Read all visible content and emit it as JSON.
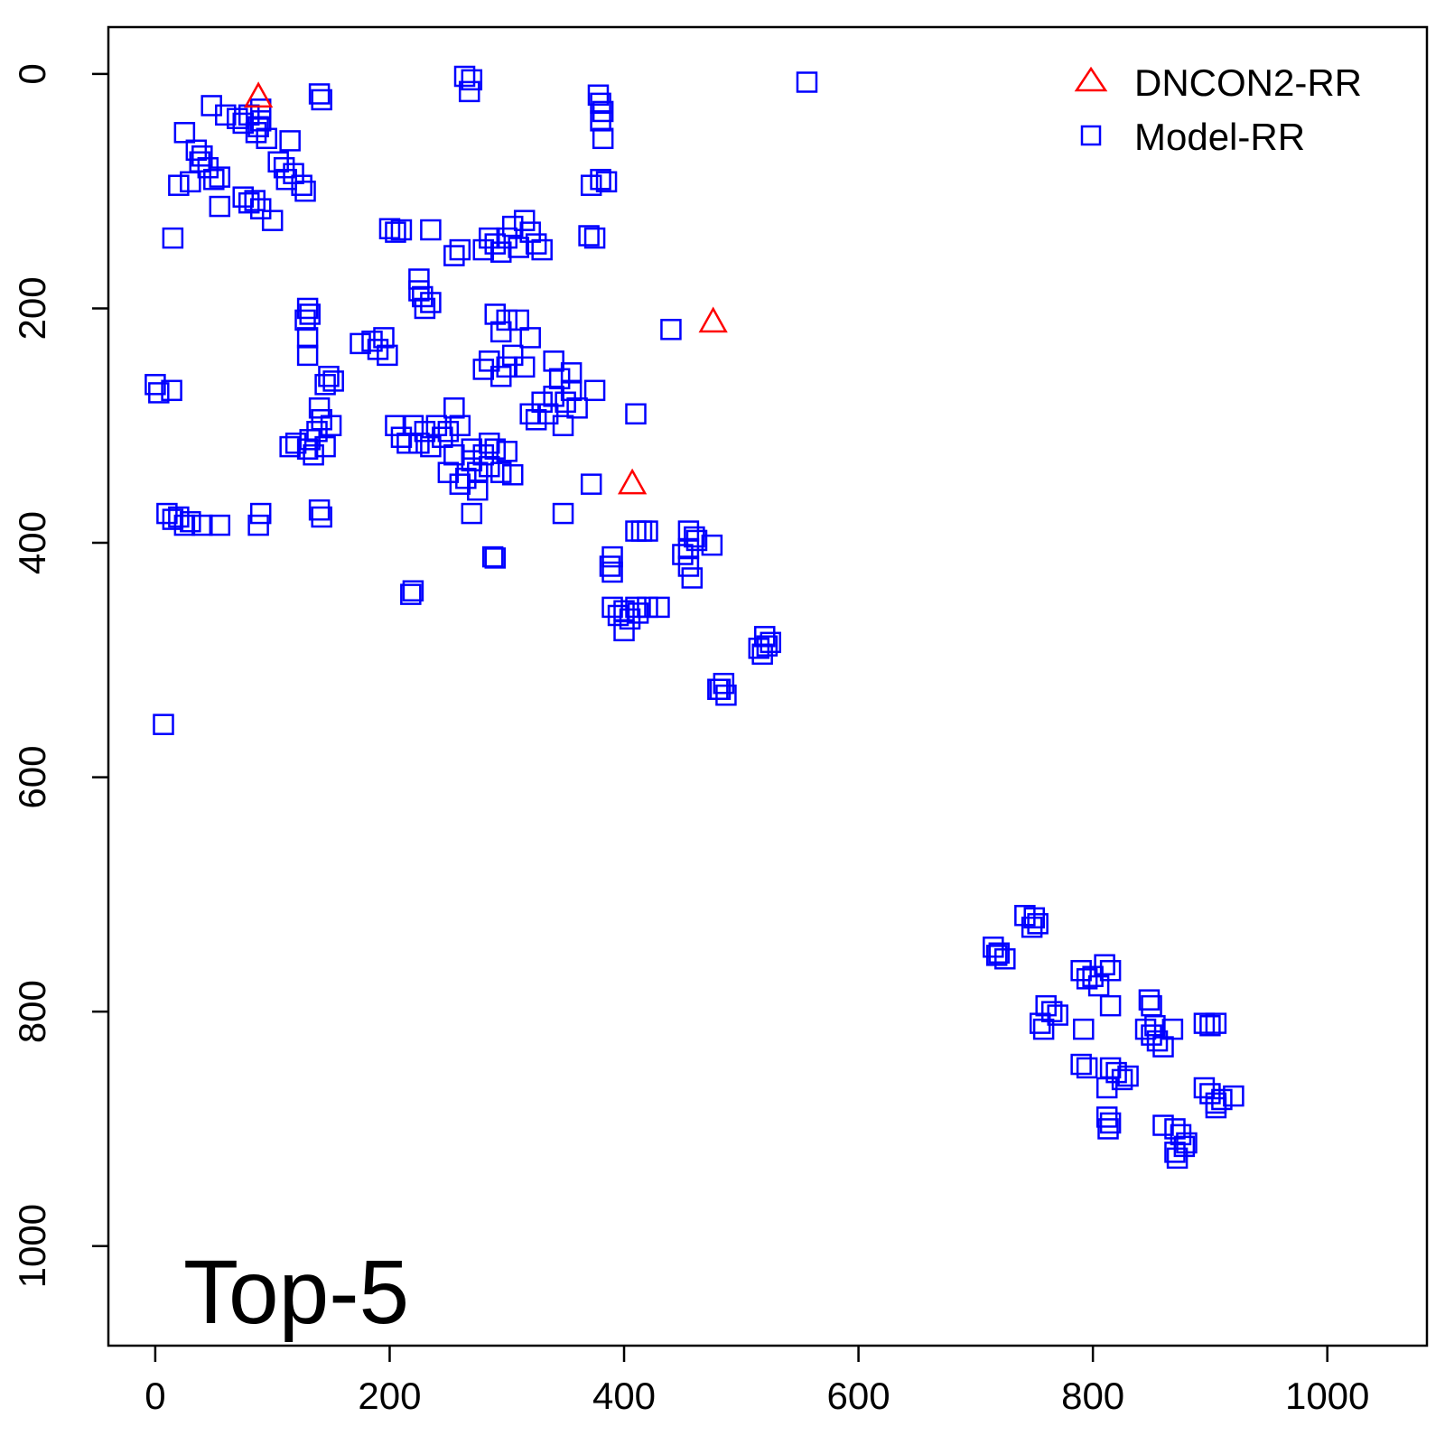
{
  "chart_data": {
    "type": "scatter",
    "annotation": "Top-5",
    "xlim": [
      -40,
      1085
    ],
    "ylim": [
      1085,
      -40
    ],
    "y_axis_reversed": true,
    "x_ticks": [
      0,
      200,
      400,
      600,
      800,
      1000
    ],
    "y_ticks": [
      0,
      200,
      400,
      600,
      800,
      1000
    ],
    "grid": false,
    "legend_position": "top-right",
    "legend": [
      {
        "label": "DNCON2-RR",
        "marker": "triangle",
        "color": "#ff0000"
      },
      {
        "label": "Model-RR",
        "marker": "square",
        "color": "#0000ff"
      }
    ],
    "series": [
      {
        "name": "DNCON2-RR",
        "marker": "triangle",
        "color": "#ff0000",
        "points": [
          [
            88,
            20
          ],
          [
            476,
            212
          ],
          [
            407,
            350
          ]
        ]
      },
      {
        "name": "Model-RR",
        "marker": "square",
        "color": "#0000ff",
        "points": [
          [
            264,
            2
          ],
          [
            270,
            5
          ],
          [
            268,
            15
          ],
          [
            556,
            7
          ],
          [
            378,
            18
          ],
          [
            380,
            25
          ],
          [
            382,
            32
          ],
          [
            380,
            40
          ],
          [
            382,
            55
          ],
          [
            48,
            27
          ],
          [
            140,
            17
          ],
          [
            142,
            22
          ],
          [
            60,
            35
          ],
          [
            70,
            38
          ],
          [
            80,
            35
          ],
          [
            90,
            40
          ],
          [
            88,
            45
          ],
          [
            95,
            55
          ],
          [
            86,
            50
          ],
          [
            75,
            42
          ],
          [
            90,
            30
          ],
          [
            25,
            50
          ],
          [
            35,
            65
          ],
          [
            40,
            70
          ],
          [
            45,
            80
          ],
          [
            50,
            90
          ],
          [
            38,
            75
          ],
          [
            55,
            88
          ],
          [
            20,
            95
          ],
          [
            30,
            92
          ],
          [
            115,
            57
          ],
          [
            110,
            80
          ],
          [
            118,
            85
          ],
          [
            125,
            95
          ],
          [
            128,
            100
          ],
          [
            105,
            75
          ],
          [
            112,
            90
          ],
          [
            55,
            113
          ],
          [
            75,
            105
          ],
          [
            80,
            110
          ],
          [
            90,
            115
          ],
          [
            100,
            125
          ],
          [
            85,
            108
          ],
          [
            15,
            140
          ],
          [
            372,
            95
          ],
          [
            380,
            90
          ],
          [
            385,
            92
          ],
          [
            375,
            140
          ],
          [
            370,
            138
          ],
          [
            200,
            132
          ],
          [
            205,
            135
          ],
          [
            210,
            133
          ],
          [
            235,
            133
          ],
          [
            260,
            150
          ],
          [
            255,
            155
          ],
          [
            280,
            150
          ],
          [
            290,
            145
          ],
          [
            300,
            140
          ],
          [
            310,
            148
          ],
          [
            320,
            135
          ],
          [
            315,
            125
          ],
          [
            330,
            150
          ],
          [
            295,
            152
          ],
          [
            305,
            130
          ],
          [
            285,
            140
          ],
          [
            325,
            145
          ],
          [
            225,
            175
          ],
          [
            228,
            190
          ],
          [
            230,
            200
          ],
          [
            235,
            195
          ],
          [
            225,
            185
          ],
          [
            130,
            200
          ],
          [
            132,
            205
          ],
          [
            130,
            225
          ],
          [
            130,
            240
          ],
          [
            128,
            210
          ],
          [
            175,
            230
          ],
          [
            185,
            228
          ],
          [
            195,
            225
          ],
          [
            198,
            240
          ],
          [
            190,
            235
          ],
          [
            290,
            205
          ],
          [
            300,
            210
          ],
          [
            295,
            220
          ],
          [
            310,
            210
          ],
          [
            320,
            225
          ],
          [
            305,
            240
          ],
          [
            300,
            250
          ],
          [
            280,
            252
          ],
          [
            295,
            258
          ],
          [
            285,
            245
          ],
          [
            315,
            250
          ],
          [
            340,
            245
          ],
          [
            345,
            260
          ],
          [
            350,
            280
          ],
          [
            355,
            270
          ],
          [
            360,
            285
          ],
          [
            335,
            290
          ],
          [
            330,
            280
          ],
          [
            320,
            290
          ],
          [
            348,
            300
          ],
          [
            325,
            295
          ],
          [
            340,
            275
          ],
          [
            355,
            255
          ],
          [
            440,
            218
          ],
          [
            375,
            270
          ],
          [
            410,
            290
          ],
          [
            0,
            265
          ],
          [
            3,
            272
          ],
          [
            14,
            270
          ],
          [
            148,
            258
          ],
          [
            152,
            262
          ],
          [
            145,
            265
          ],
          [
            140,
            285
          ],
          [
            142,
            295
          ],
          [
            138,
            305
          ],
          [
            132,
            312
          ],
          [
            145,
            318
          ],
          [
            130,
            320
          ],
          [
            120,
            315
          ],
          [
            115,
            318
          ],
          [
            135,
            325
          ],
          [
            150,
            300
          ],
          [
            205,
            300
          ],
          [
            210,
            310
          ],
          [
            220,
            300
          ],
          [
            225,
            315
          ],
          [
            230,
            305
          ],
          [
            240,
            300
          ],
          [
            245,
            310
          ],
          [
            250,
            305
          ],
          [
            260,
            300
          ],
          [
            255,
            285
          ],
          [
            255,
            325
          ],
          [
            215,
            315
          ],
          [
            235,
            318
          ],
          [
            270,
            320
          ],
          [
            280,
            325
          ],
          [
            290,
            320
          ],
          [
            285,
            335
          ],
          [
            275,
            340
          ],
          [
            265,
            345
          ],
          [
            275,
            355
          ],
          [
            295,
            340
          ],
          [
            250,
            340
          ],
          [
            260,
            350
          ],
          [
            270,
            330
          ],
          [
            285,
            315
          ],
          [
            300,
            322
          ],
          [
            305,
            342
          ],
          [
            372,
            350
          ],
          [
            348,
            375
          ],
          [
            270,
            375
          ],
          [
            10,
            375
          ],
          [
            15,
            380
          ],
          [
            20,
            378
          ],
          [
            25,
            385
          ],
          [
            30,
            382
          ],
          [
            40,
            385
          ],
          [
            55,
            385
          ],
          [
            90,
            375
          ],
          [
            88,
            385
          ],
          [
            140,
            372
          ],
          [
            142,
            378
          ],
          [
            410,
            390
          ],
          [
            415,
            390
          ],
          [
            420,
            390
          ],
          [
            390,
            412
          ],
          [
            388,
            420
          ],
          [
            390,
            425
          ],
          [
            288,
            412
          ],
          [
            290,
            413
          ],
          [
            455,
            390
          ],
          [
            460,
            395
          ],
          [
            455,
            405
          ],
          [
            450,
            410
          ],
          [
            455,
            420
          ],
          [
            458,
            430
          ],
          [
            475,
            402
          ],
          [
            462,
            398
          ],
          [
            220,
            441
          ],
          [
            218,
            444
          ],
          [
            390,
            455
          ],
          [
            400,
            458
          ],
          [
            410,
            455
          ],
          [
            405,
            465
          ],
          [
            395,
            462
          ],
          [
            420,
            455
          ],
          [
            430,
            455
          ],
          [
            400,
            475
          ],
          [
            412,
            460
          ],
          [
            520,
            480
          ],
          [
            515,
            490
          ],
          [
            525,
            485
          ],
          [
            518,
            495
          ],
          [
            522,
            488
          ],
          [
            485,
            520
          ],
          [
            480,
            525
          ],
          [
            487,
            530
          ],
          [
            482,
            525
          ],
          [
            7,
            555
          ],
          [
            742,
            718
          ],
          [
            750,
            720
          ],
          [
            748,
            728
          ],
          [
            753,
            725
          ],
          [
            715,
            745
          ],
          [
            720,
            750
          ],
          [
            725,
            755
          ],
          [
            718,
            752
          ],
          [
            790,
            765
          ],
          [
            800,
            770
          ],
          [
            810,
            760
          ],
          [
            815,
            765
          ],
          [
            805,
            778
          ],
          [
            795,
            772
          ],
          [
            760,
            795
          ],
          [
            765,
            800
          ],
          [
            755,
            810
          ],
          [
            770,
            803
          ],
          [
            758,
            815
          ],
          [
            792,
            815
          ],
          [
            815,
            795
          ],
          [
            848,
            790
          ],
          [
            850,
            795
          ],
          [
            845,
            815
          ],
          [
            850,
            820
          ],
          [
            855,
            825
          ],
          [
            860,
            830
          ],
          [
            868,
            815
          ],
          [
            853,
            812
          ],
          [
            895,
            810
          ],
          [
            900,
            812
          ],
          [
            905,
            810
          ],
          [
            790,
            845
          ],
          [
            795,
            848
          ],
          [
            815,
            848
          ],
          [
            820,
            852
          ],
          [
            825,
            858
          ],
          [
            830,
            855
          ],
          [
            812,
            865
          ],
          [
            895,
            865
          ],
          [
            900,
            870
          ],
          [
            905,
            878
          ],
          [
            910,
            875
          ],
          [
            920,
            872
          ],
          [
            905,
            882
          ],
          [
            812,
            890
          ],
          [
            815,
            895
          ],
          [
            813,
            900
          ],
          [
            860,
            897
          ],
          [
            870,
            900
          ],
          [
            875,
            905
          ],
          [
            880,
            912
          ],
          [
            870,
            920
          ],
          [
            872,
            925
          ],
          [
            878,
            915
          ]
        ]
      }
    ]
  }
}
